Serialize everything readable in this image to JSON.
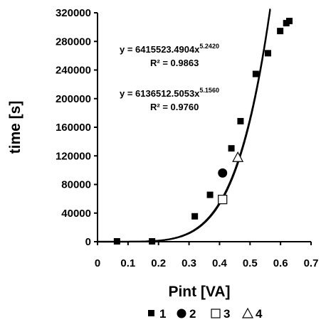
{
  "chart_data": {
    "type": "scatter",
    "xlabel": "Pint  [VA]",
    "ylabel": "time [s]",
    "xlim": [
      0,
      0.7
    ],
    "ylim": [
      0,
      320000
    ],
    "x_ticks": [
      "0",
      "0.1",
      "0.2",
      "0.3",
      "0.4",
      "0.5",
      "0.6",
      "0.7"
    ],
    "y_ticks": [
      "0",
      "40000",
      "80000",
      "120000",
      "160000",
      "200000",
      "240000",
      "280000",
      "320000"
    ],
    "grid": false,
    "legend_position": "bottom",
    "series": [
      {
        "name": "1",
        "marker": "square-filled",
        "points": [
          [
            0.065,
            0
          ],
          [
            0.18,
            0
          ],
          [
            0.32,
            35000
          ],
          [
            0.37,
            65000
          ],
          [
            0.44,
            130000
          ],
          [
            0.47,
            168000
          ],
          [
            0.52,
            234000
          ],
          [
            0.56,
            263000
          ],
          [
            0.6,
            294000
          ],
          [
            0.62,
            305000
          ],
          [
            0.63,
            308000
          ]
        ]
      },
      {
        "name": "2",
        "marker": "circle-filled",
        "points": [
          [
            0.41,
            96000
          ]
        ]
      },
      {
        "name": "3",
        "marker": "square-open",
        "points": [
          [
            0.41,
            59000
          ]
        ]
      },
      {
        "name": "4",
        "marker": "triangle-open",
        "points": [
          [
            0.46,
            118000
          ]
        ]
      }
    ],
    "trendlines": [
      {
        "a": 6415523.4904,
        "b": 5.242,
        "equation": "y = 6415523.4904x",
        "exponent": "5.2420",
        "r2": "R² = 0.9863"
      },
      {
        "a": 6136512.5053,
        "b": 5.156,
        "equation": "y = 6136512.5053x",
        "exponent": "5.1560",
        "r2": "R² = 0.9760"
      }
    ]
  }
}
